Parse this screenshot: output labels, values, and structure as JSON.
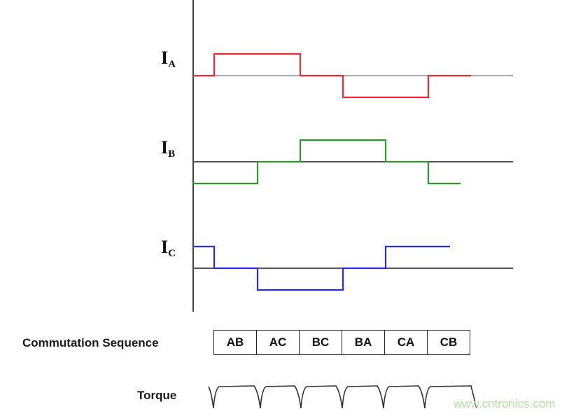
{
  "labels": {
    "ia_main": "I",
    "ia_sub": "A",
    "ib_main": "I",
    "ib_sub": "B",
    "ic_main": "I",
    "ic_sub": "C"
  },
  "commutation_label": "Commutation Sequence",
  "torque_label": "Torque",
  "sequence": [
    "AB",
    "AC",
    "BC",
    "BA",
    "CA",
    "CB"
  ],
  "watermark": "www.cntronics.com",
  "waveforms": [
    {
      "name": "IA",
      "color": "#ee2b35",
      "baseline_color": "#aaaaaa",
      "levels": [
        0,
        1,
        1,
        0,
        -1,
        -1,
        0
      ]
    },
    {
      "name": "IB",
      "color": "#2a9a2a",
      "baseline_color": "#555555",
      "levels": [
        -1,
        -1,
        0,
        1,
        1,
        0,
        -1
      ]
    },
    {
      "name": "IC",
      "color": "#2a2aee",
      "baseline_color": "#555555",
      "levels": [
        1,
        0,
        -1,
        -1,
        0,
        1,
        1
      ]
    }
  ]
}
